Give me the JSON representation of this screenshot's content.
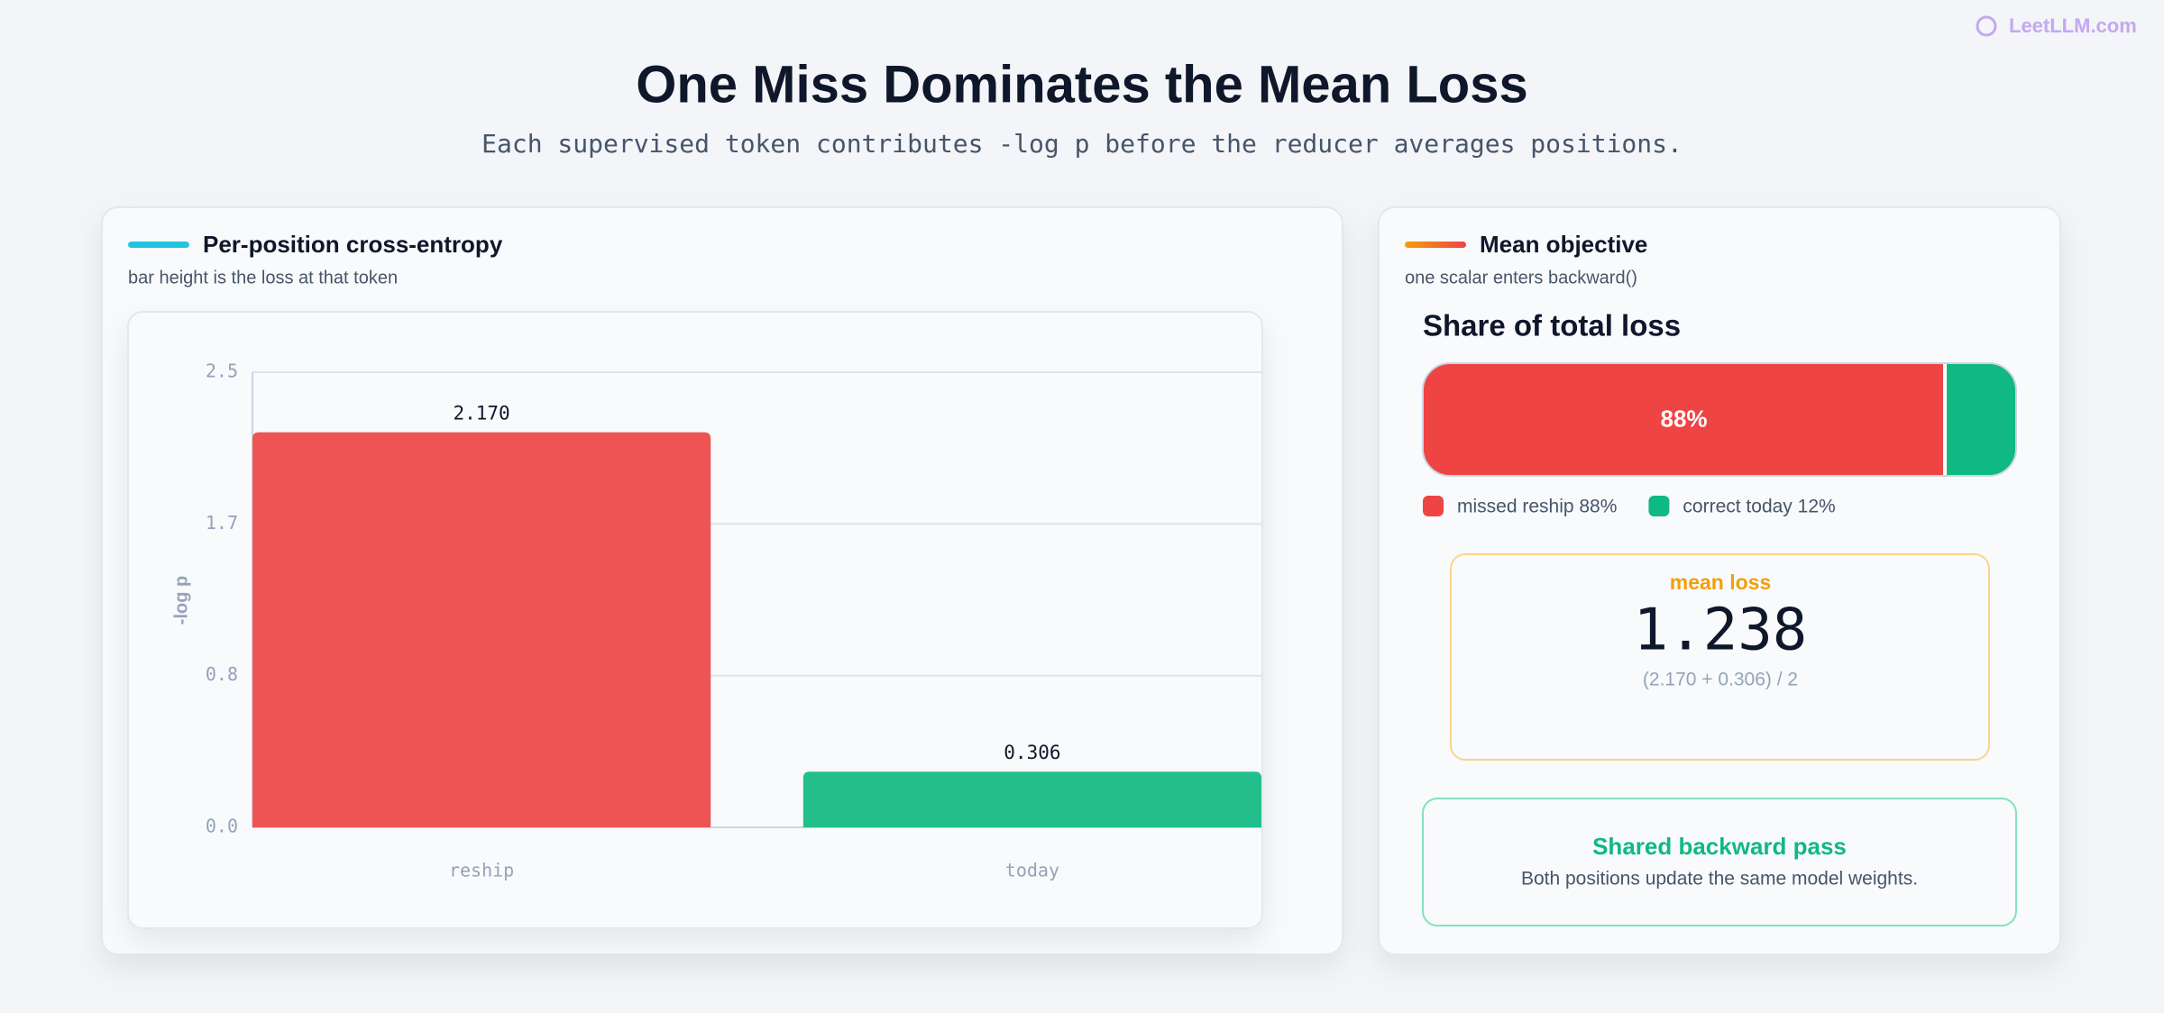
{
  "brand": "LeetLLM.com",
  "header": {
    "title": "One Miss Dominates the Mean Loss",
    "subtitle": "Each supervised token contributes -log p before the reducer averages positions."
  },
  "left_panel": {
    "title": "Per-position cross-entropy",
    "subtitle": "bar height is the loss at that token"
  },
  "chart_data": {
    "type": "bar",
    "categories": [
      "reship",
      "today"
    ],
    "values": [
      2.17,
      0.306
    ],
    "value_labels": [
      "2.170",
      "0.306"
    ],
    "colors": [
      "#ef5455",
      "#22bf8a"
    ],
    "y_label": "-log p",
    "ylim": [
      0,
      2.5
    ],
    "yticks": [
      {
        "value": 0,
        "label": "0.0"
      },
      {
        "value": 0.833,
        "label": "0.8"
      },
      {
        "value": 1.667,
        "label": "1.7"
      },
      2.5
    ],
    "grid": true
  },
  "right_panel": {
    "title": "Mean objective",
    "subtitle": "one scalar enters backward()"
  },
  "share": {
    "title": "Share of total loss",
    "segments": [
      {
        "name": "missed reship 88%",
        "value": 88,
        "value_label": "88%",
        "color": "#ef4444"
      },
      {
        "name": "correct today 12%",
        "value": 12,
        "color": "#10b981"
      }
    ]
  },
  "mean_card": {
    "label": "mean loss",
    "value": 1.238,
    "formula": "(2.170 + 0.306) / 2"
  },
  "backward_card": {
    "title": "Shared backward pass",
    "text": "Both positions update the same model weights."
  }
}
